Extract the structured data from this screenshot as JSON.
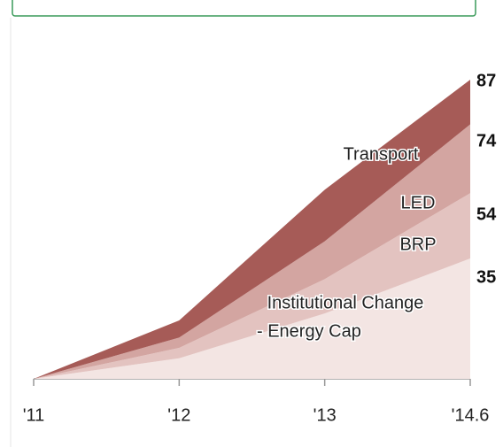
{
  "chart_data": {
    "type": "stacked_area",
    "categories": [
      "'11",
      "'12",
      "'13",
      "'14.6"
    ],
    "series": [
      {
        "name": "Institutional Change - Energy Cap",
        "color": "#f3e5e3",
        "values": [
          0,
          6,
          19,
          35
        ]
      },
      {
        "name": "BRP",
        "color": "#e3c3c0",
        "values": [
          0,
          3,
          10,
          19
        ]
      },
      {
        "name": "LED",
        "color": "#d3a5a1",
        "values": [
          0,
          3,
          11,
          20
        ]
      },
      {
        "name": "Transport",
        "color": "#a65b57",
        "values": [
          0,
          5,
          15,
          13
        ]
      }
    ],
    "annotations": [
      "Institutional Change",
      "- Energy Cap",
      "BRP",
      "LED",
      "Transport"
    ],
    "end_labels": [
      87,
      74,
      54,
      35
    ]
  }
}
